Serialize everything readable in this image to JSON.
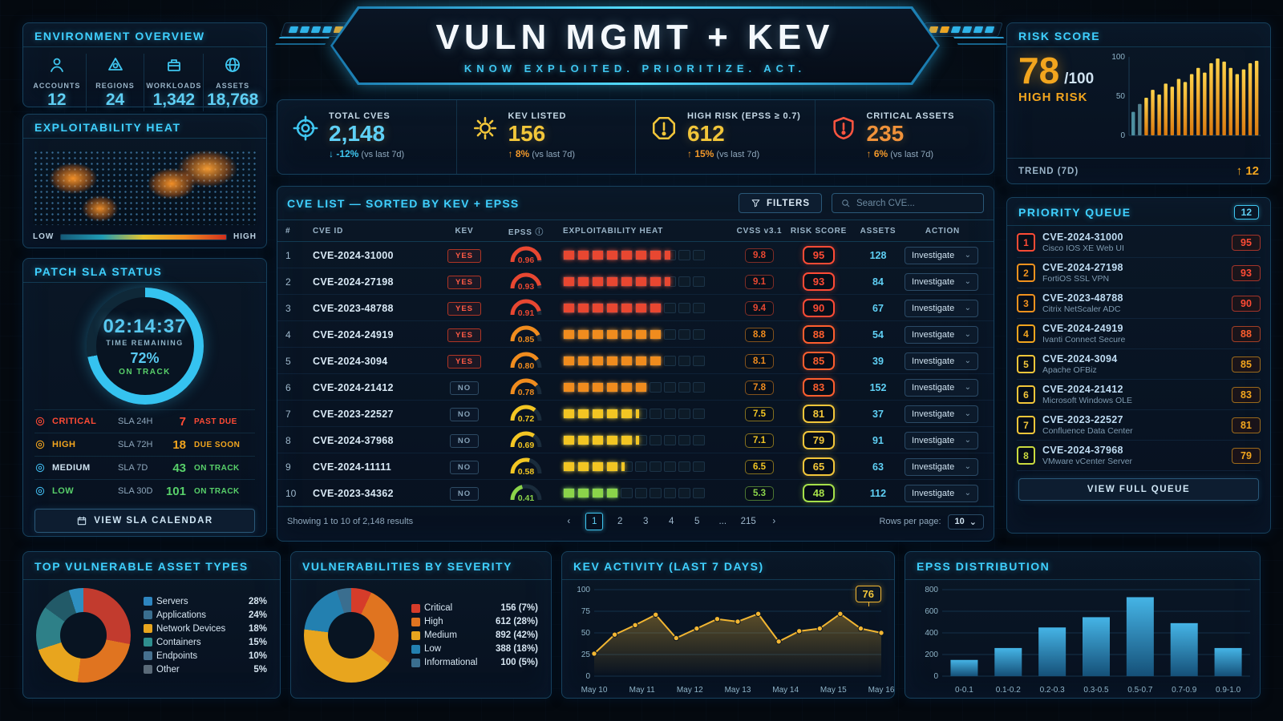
{
  "decor": {
    "left_chips": [
      "#2fb3e8",
      "#2fb3e8",
      "#2fb3e8",
      "#2fb3e8",
      "#f2a51e",
      "#f2a51e"
    ],
    "right_chips": [
      "#f2a51e",
      "#f2a51e",
      "#2fb3e8",
      "#2fb3e8",
      "#2fb3e8",
      "#2fb3e8"
    ]
  },
  "header": {
    "title": "VULN MGMT + KEV",
    "subtitle": "KNOW EXPLOITED. PRIORITIZE. ACT."
  },
  "env": {
    "title": "ENVIRONMENT OVERVIEW",
    "stats": [
      {
        "icon": "accounts-user-icon",
        "label": "ACCOUNTS",
        "value": "12"
      },
      {
        "icon": "regions-icon",
        "label": "REGIONS",
        "value": "24"
      },
      {
        "icon": "workloads-icon",
        "label": "WORKLOADS",
        "value": "1,342"
      },
      {
        "icon": "assets-globe-icon",
        "label": "ASSETS",
        "value": "18,768"
      }
    ]
  },
  "heat": {
    "title": "EXPLOITABILITY HEAT",
    "low": "LOW",
    "high": "HIGH"
  },
  "sla": {
    "title": "PATCH SLA STATUS",
    "time": "02:14:37",
    "time_label": "TIME REMAINING",
    "percent": "72%",
    "percent_num": 72,
    "status": "ON TRACK",
    "rows": [
      {
        "severity": "CRITICAL",
        "sla": "SLA 24H",
        "count": "7",
        "state": "PAST DUE",
        "color": "#ff4b35",
        "count_color": "#ff4b35",
        "state_color": "#ff4b35",
        "icon_color": "#ff4b35"
      },
      {
        "severity": "HIGH",
        "sla": "SLA 72H",
        "count": "18",
        "state": "DUE SOON",
        "color": "#f2a51e",
        "count_color": "#f2a51e",
        "state_color": "#f2a51e",
        "icon_color": "#f2a51e"
      },
      {
        "severity": "MEDIUM",
        "sla": "SLA 7D",
        "count": "43",
        "state": "ON TRACK",
        "color": "#cfe2f0",
        "count_color": "#58d06a",
        "state_color": "#58d06a",
        "icon_color": "#3fb6e8"
      },
      {
        "severity": "LOW",
        "sla": "SLA 30D",
        "count": "101",
        "state": "ON TRACK",
        "color": "#58d06a",
        "count_color": "#58d06a",
        "state_color": "#58d06a",
        "icon_color": "#3fb6e8"
      }
    ],
    "button": "VIEW SLA CALENDAR"
  },
  "kpis": {
    "items": [
      {
        "icon": "scan-target-icon",
        "icon_color": "#3fc6f0",
        "label": "TOTAL CVES",
        "value": "2,148",
        "value_color": "#5fd0f5",
        "arrow": "↓",
        "delta": "-12%",
        "delta_color": "#3fc6f0",
        "note": "(vs last 7d)"
      },
      {
        "icon": "kev-gear-icon",
        "icon_color": "#f2c63a",
        "label": "KEV LISTED",
        "value": "156",
        "value_color": "#f2c63a",
        "arrow": "↑",
        "delta": "8%",
        "delta_color": "#f2982a",
        "note": "(vs last 7d)"
      },
      {
        "icon": "risk-alert-icon",
        "icon_color": "#f2c63a",
        "label": "HIGH RISK (EPSS ≥ 0.7)",
        "value": "612",
        "value_color": "#f2c63a",
        "arrow": "↑",
        "delta": "15%",
        "delta_color": "#f2982a",
        "note": "(vs last 7d)"
      },
      {
        "icon": "critical-shield-icon",
        "icon_color": "#ff5540",
        "label": "CRITICAL ASSETS",
        "value": "235",
        "value_color": "#f0923a",
        "arrow": "↑",
        "delta": "6%",
        "delta_color": "#f2982a",
        "note": "(vs last 7d)"
      }
    ]
  },
  "cve": {
    "title": "CVE LIST — SORTED BY KEV + EPSS",
    "filters": "FILTERS",
    "search_placeholder": "Search CVE...",
    "columns": [
      "#",
      "CVE ID",
      "KEV",
      "EPSS",
      "EXPLOITABILITY HEAT",
      "CVSS v3.1",
      "RISK SCORE",
      "ASSETS",
      "ACTION"
    ],
    "action_label": "Investigate",
    "rows": [
      {
        "num": "1",
        "id": "CVE-2024-31000",
        "kev": "YES",
        "epss": 0.96,
        "heat": 7.5,
        "cvss": "9.8",
        "risk": "95",
        "assets": "128",
        "color": "#e84731",
        "risk_color": "#ff4b35"
      },
      {
        "num": "2",
        "id": "CVE-2024-27198",
        "kev": "YES",
        "epss": 0.93,
        "heat": 7.5,
        "cvss": "9.1",
        "risk": "93",
        "assets": "84",
        "color": "#e84731",
        "risk_color": "#ff4b35"
      },
      {
        "num": "3",
        "id": "CVE-2023-48788",
        "kev": "YES",
        "epss": 0.91,
        "heat": 7,
        "cvss": "9.4",
        "risk": "90",
        "assets": "67",
        "color": "#e84731",
        "risk_color": "#ff4b35"
      },
      {
        "num": "4",
        "id": "CVE-2024-24919",
        "kev": "YES",
        "epss": 0.85,
        "heat": 7,
        "cvss": "8.8",
        "risk": "88",
        "assets": "54",
        "color": "#f08c1e",
        "risk_color": "#ff5e2e"
      },
      {
        "num": "5",
        "id": "CVE-2024-3094",
        "kev": "YES",
        "epss": 0.8,
        "heat": 7,
        "cvss": "8.1",
        "risk": "85",
        "assets": "39",
        "color": "#f08c1e",
        "risk_color": "#ff5e2e"
      },
      {
        "num": "6",
        "id": "CVE-2024-21412",
        "kev": "NO",
        "epss": 0.78,
        "heat": 6,
        "cvss": "7.8",
        "risk": "83",
        "assets": "152",
        "color": "#f08c1e",
        "risk_color": "#ff5e2e"
      },
      {
        "num": "7",
        "id": "CVE-2023-22527",
        "kev": "NO",
        "epss": 0.72,
        "heat": 5.3,
        "cvss": "7.5",
        "risk": "81",
        "assets": "37",
        "color": "#f3c623",
        "risk_color": "#f2c63a"
      },
      {
        "num": "8",
        "id": "CVE-2024-37968",
        "kev": "NO",
        "epss": 0.69,
        "heat": 5.3,
        "cvss": "7.1",
        "risk": "79",
        "assets": "91",
        "color": "#f3c623",
        "risk_color": "#f2c63a"
      },
      {
        "num": "9",
        "id": "CVE-2024-11111",
        "kev": "NO",
        "epss": 0.58,
        "heat": 4.3,
        "cvss": "6.5",
        "risk": "65",
        "assets": "63",
        "color": "#f3c623",
        "risk_color": "#f2c63a"
      },
      {
        "num": "10",
        "id": "CVE-2023-34362",
        "kev": "NO",
        "epss": 0.41,
        "heat": 4,
        "cvss": "5.3",
        "risk": "48",
        "assets": "112",
        "color": "#8bd44a",
        "risk_color": "#a6e04a"
      }
    ],
    "footer": {
      "showing": "Showing 1 to 10 of 2,148 results",
      "prev": "‹",
      "next": "›",
      "pages": [
        "1",
        "2",
        "3",
        "4",
        "5",
        "...",
        "215"
      ],
      "active_page": "1",
      "rows_label": "Rows per page:",
      "rows_value": "10"
    }
  },
  "risk": {
    "title": "RISK SCORE",
    "score": "78",
    "max": "/100",
    "level": "HIGH RISK",
    "trend_label": "TREND (7D)",
    "trend_arrow": "↑",
    "trend_delta": "12"
  },
  "queue": {
    "title": "PRIORITY QUEUE",
    "badge": "12",
    "button": "VIEW FULL QUEUE",
    "items": [
      {
        "rank": "1",
        "id": "CVE-2024-31000",
        "name": "Cisco IOS XE Web UI",
        "score": "95",
        "rank_color": "#ff4b35",
        "score_color": "#ff4b35"
      },
      {
        "rank": "2",
        "id": "CVE-2024-27198",
        "name": "FortiOS SSL VPN",
        "score": "93",
        "rank_color": "#f0921e",
        "score_color": "#ff4b35"
      },
      {
        "rank": "3",
        "id": "CVE-2023-48788",
        "name": "Citrix NetScaler ADC",
        "score": "90",
        "rank_color": "#f0921e",
        "score_color": "#ff4b35"
      },
      {
        "rank": "4",
        "id": "CVE-2024-24919",
        "name": "Ivanti Connect Secure",
        "score": "88",
        "rank_color": "#f2a51e",
        "score_color": "#ff5e2e"
      },
      {
        "rank": "5",
        "id": "CVE-2024-3094",
        "name": "Apache OFBiz",
        "score": "85",
        "rank_color": "#f2c63a",
        "score_color": "#f2a51e"
      },
      {
        "rank": "6",
        "id": "CVE-2024-21412",
        "name": "Microsoft Windows OLE",
        "score": "83",
        "rank_color": "#f2c63a",
        "score_color": "#f2a51e"
      },
      {
        "rank": "7",
        "id": "CVE-2023-22527",
        "name": "Confluence Data Center",
        "score": "81",
        "rank_color": "#f2c63a",
        "score_color": "#f2a51e"
      },
      {
        "rank": "8",
        "id": "CVE-2024-37968",
        "name": "VMware vCenter Server",
        "score": "79",
        "rank_color": "#cada3f",
        "score_color": "#f2a51e"
      }
    ]
  },
  "panels": {
    "assets_title": "TOP VULNERABLE ASSET TYPES",
    "severity_title": "VULNERABILITIES BY SEVERITY",
    "kev_title": "KEV ACTIVITY (LAST 7 DAYS)",
    "epss_title": "EPSS DISTRIBUTION"
  },
  "chart_data": [
    {
      "id": "risk_trend",
      "type": "bar",
      "title": "RISK SCORE TREND (7D)",
      "values": [
        30,
        40,
        48,
        58,
        52,
        66,
        62,
        72,
        68,
        78,
        86,
        80,
        92,
        98,
        94,
        86,
        78,
        84,
        92,
        95
      ],
      "ylim": [
        0,
        100
      ],
      "yticks": [
        0,
        50,
        100
      ],
      "first_colors": [
        "#4d8fa0",
        "#53808e"
      ],
      "bar_color": "#f0a028"
    },
    {
      "id": "asset_types",
      "type": "pie",
      "title": "TOP VULNERABLE ASSET TYPES",
      "labels": [
        "Servers",
        "Applications",
        "Network Devices",
        "Containers",
        "Endpoints",
        "Other"
      ],
      "values": [
        28,
        24,
        18,
        15,
        10,
        5
      ],
      "pct_labels": [
        "28%",
        "24%",
        "18%",
        "15%",
        "10%",
        "5%"
      ],
      "donut_colors": [
        "#c23b2e",
        "#e07420",
        "#e8a51e",
        "#2e8088",
        "#225a68",
        "#2e8fc0"
      ],
      "legend_swatches": [
        "#2e86c0",
        "#3a6e8f",
        "#e8a51e",
        "#2f8f8f",
        "#46708f",
        "#5a6a78"
      ]
    },
    {
      "id": "severity",
      "type": "pie",
      "title": "VULNERABILITIES BY SEVERITY",
      "labels": [
        "Critical",
        "High",
        "Medium",
        "Low",
        "Informational"
      ],
      "counts": [
        156,
        612,
        892,
        388,
        100
      ],
      "values": [
        7,
        28,
        42,
        18,
        5
      ],
      "display": [
        "156  (7%)",
        "612  (28%)",
        "892  (42%)",
        "388  (18%)",
        "100  (5%)"
      ],
      "colors": [
        "#d63c2a",
        "#e07420",
        "#e8a51e",
        "#2380b0",
        "#3a6e8f"
      ]
    },
    {
      "id": "kev_activity",
      "type": "line",
      "title": "KEV ACTIVITY (LAST 7 DAYS)",
      "x_labels": [
        "May 10",
        "May 11",
        "May 12",
        "May 13",
        "May 14",
        "May 15",
        "May 16"
      ],
      "values": [
        26,
        48,
        59,
        71,
        44,
        55,
        66,
        63,
        72,
        40,
        52,
        55,
        72,
        55,
        50
      ],
      "ylim": [
        0,
        100
      ],
      "yticks": [
        0,
        25,
        50,
        75,
        100
      ],
      "tooltip": "76",
      "line_color": "#f2b632"
    },
    {
      "id": "epss_distribution",
      "type": "bar",
      "title": "EPSS DISTRIBUTION",
      "categories": [
        "0-0.1",
        "0.1-0.2",
        "0.2-0.3",
        "0.3-0.5",
        "0.5-0.7",
        "0.7-0.9",
        "0.9-1.0"
      ],
      "values": [
        150,
        260,
        450,
        545,
        730,
        490,
        260
      ],
      "ylim": [
        0,
        800
      ],
      "yticks": [
        0,
        200,
        400,
        600,
        800
      ],
      "bar_color": "#3fb0e0"
    }
  ]
}
